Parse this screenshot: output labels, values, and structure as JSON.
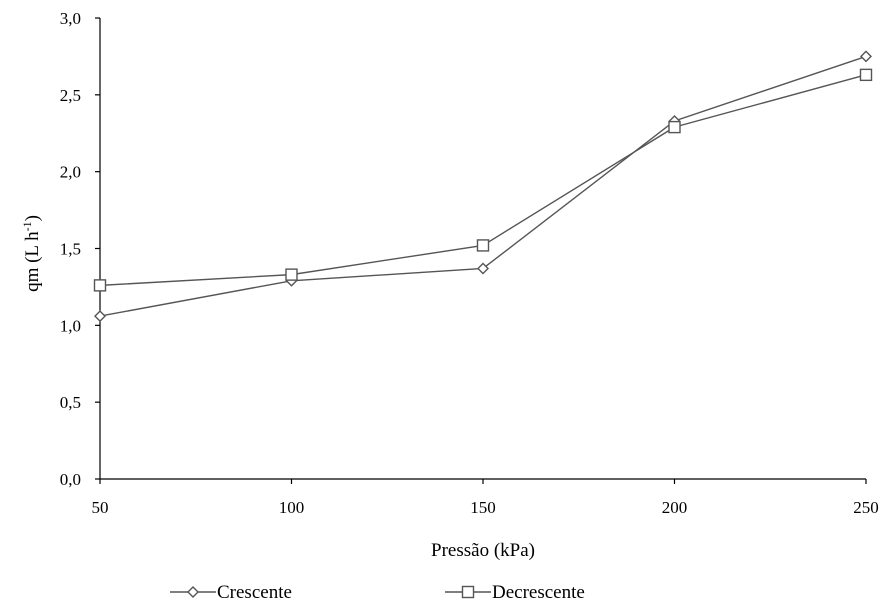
{
  "chart_data": {
    "type": "line",
    "title": "",
    "xlabel": "Pressão (kPa)",
    "ylabel": "qm (L h",
    "ylabel_sup": "-1",
    "ylabel_close": ")",
    "x": [
      50,
      100,
      150,
      200,
      250
    ],
    "xlim": [
      50,
      250
    ],
    "ylim": [
      0,
      3
    ],
    "x_ticks": [
      "50",
      "100",
      "150",
      "200",
      "250"
    ],
    "y_ticks": [
      "0,0",
      "0,5",
      "1,0",
      "1,5",
      "2,0",
      "2,5",
      "3,0"
    ],
    "grid": false,
    "legend_position": "bottom",
    "series": [
      {
        "name": "Crescente",
        "marker": "diamond",
        "color": "#555555",
        "values": [
          1.06,
          1.29,
          1.37,
          2.33,
          2.75
        ]
      },
      {
        "name": "Decrescente",
        "marker": "square",
        "color": "#555555",
        "values": [
          1.26,
          1.33,
          1.52,
          2.29,
          2.63
        ]
      }
    ]
  }
}
